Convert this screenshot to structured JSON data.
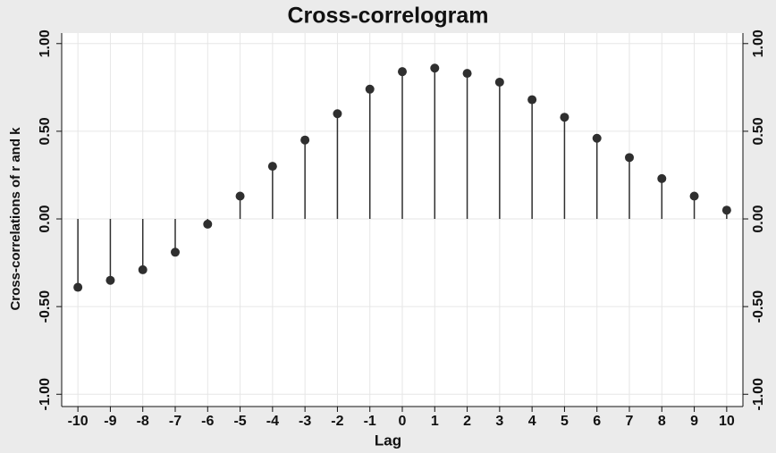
{
  "chart_data": {
    "type": "stem",
    "title": "Cross-correlogram",
    "x_label": "Lag",
    "y_label": "Cross-correlations of r and k",
    "x": [
      -10,
      -9,
      -8,
      -7,
      -6,
      -5,
      -4,
      -3,
      -2,
      -1,
      0,
      1,
      2,
      3,
      4,
      5,
      6,
      7,
      8,
      9,
      10
    ],
    "values": [
      -0.39,
      -0.35,
      -0.29,
      -0.19,
      -0.03,
      0.13,
      0.3,
      0.45,
      0.6,
      0.74,
      0.84,
      0.86,
      0.83,
      0.78,
      0.68,
      0.58,
      0.46,
      0.35,
      0.23,
      0.13,
      0.05
    ],
    "color": "#2f2f2f",
    "xlim": [
      -10.5,
      10.5
    ],
    "xticks": [
      -10,
      -9,
      -8,
      -7,
      -6,
      -5,
      -4,
      -3,
      -2,
      -1,
      0,
      1,
      2,
      3,
      4,
      5,
      6,
      7,
      8,
      9,
      10
    ],
    "ylim": [
      -1.07,
      1.06
    ],
    "yticks": [
      {
        "value": -1,
        "label": "-1.00"
      },
      {
        "value": -0.5,
        "label": "-0.50"
      },
      {
        "value": 0,
        "label": "0.00"
      },
      {
        "value": 0.5,
        "label": "0.50"
      },
      {
        "value": 1,
        "label": "1.00"
      }
    ],
    "grid": true
  }
}
